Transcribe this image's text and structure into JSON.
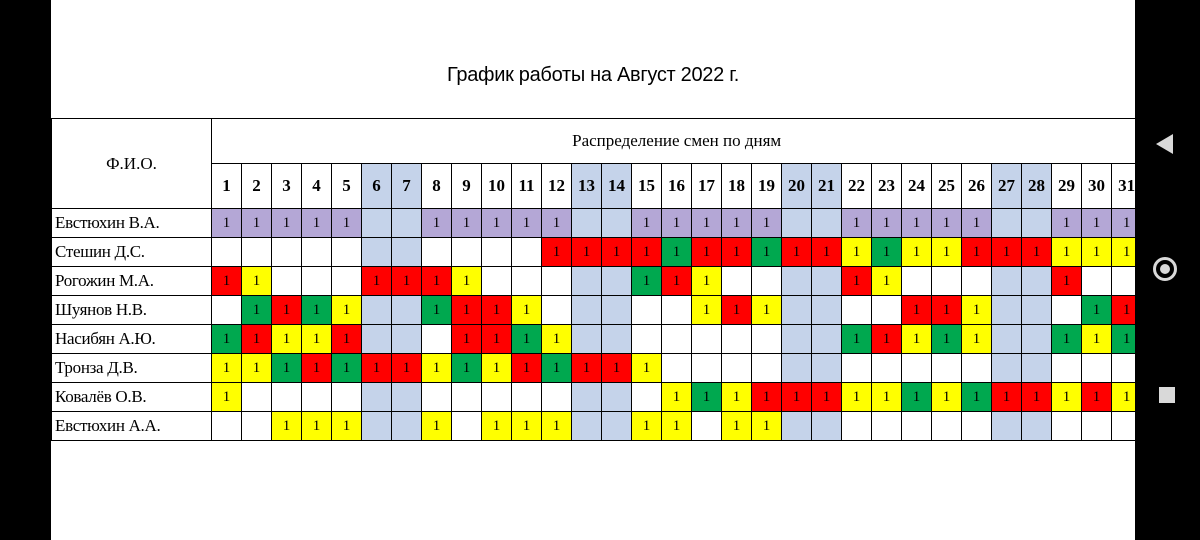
{
  "title": "График работы на Август 2022 г.",
  "header": {
    "fio": "Ф.И.О.",
    "distribution": "Распределение смен по дням"
  },
  "days": [
    "1",
    "2",
    "3",
    "4",
    "5",
    "6",
    "7",
    "8",
    "9",
    "10",
    "11",
    "12",
    "13",
    "14",
    "15",
    "16",
    "17",
    "18",
    "19",
    "20",
    "21",
    "22",
    "23",
    "24",
    "25",
    "26",
    "27",
    "28",
    "29",
    "30",
    "31"
  ],
  "weekend_days": [
    6,
    7,
    13,
    14,
    20,
    21,
    27,
    28
  ],
  "legend_colors": {
    "p": "#b4a7d6",
    "r": "#ff0000",
    "y": "#ffff00",
    "g": "#00a84f",
    "weekend": "#c5d3ea"
  },
  "rows": [
    {
      "name": "Евстюхин В.А.",
      "shifts": [
        "p1",
        "p1",
        "p1",
        "p1",
        "p1",
        "",
        "",
        "p1",
        "p1",
        "p1",
        "p1",
        "p1",
        "",
        "",
        "p1",
        "p1",
        "p1",
        "p1",
        "p1",
        "",
        "",
        "p1",
        "p1",
        "p1",
        "p1",
        "p1",
        "",
        "",
        "p1",
        "p1",
        "p1"
      ]
    },
    {
      "name": "Стешин Д.С.",
      "shifts": [
        "",
        "",
        "",
        "",
        "",
        "",
        "",
        "",
        "",
        "",
        "",
        "r1",
        "r1",
        "r1",
        "r1",
        "g1",
        "r1",
        "r1",
        "g1",
        "r1",
        "r1",
        "y1",
        "g1",
        "y1",
        "y1",
        "r1",
        "r1",
        "r1",
        "y1",
        "y1",
        "y1"
      ]
    },
    {
      "name": "Рогожин  М.А.",
      "shifts": [
        "r1",
        "y1",
        "",
        "",
        "",
        "r1",
        "r1",
        "r1",
        "y1",
        "",
        "",
        "",
        "",
        "",
        "g1",
        "r1",
        "y1",
        "",
        "",
        "",
        "",
        "r1",
        "y1",
        "",
        "",
        "",
        "",
        "",
        "r1",
        "",
        ""
      ]
    },
    {
      "name": "Шуянов Н.В.",
      "shifts": [
        "",
        "g1",
        "r1",
        "g1",
        "y1",
        "",
        "",
        "g1",
        "r1",
        "r1",
        "y1",
        "",
        "",
        "",
        "",
        "",
        "y1",
        "r1",
        "y1",
        "",
        "",
        "",
        "",
        "r1",
        "r1",
        "y1",
        "",
        "",
        "",
        "g1",
        "r1"
      ]
    },
    {
      "name": "Насибян А.Ю.",
      "shifts": [
        "g1",
        "r1",
        "y1",
        "y1",
        "r1",
        "",
        "",
        "",
        "r1",
        "r1",
        "g1",
        "y1",
        "",
        "",
        "",
        "",
        "",
        "",
        "",
        "",
        "",
        "g1",
        "r1",
        "y1",
        "g1",
        "y1",
        "",
        "",
        "g1",
        "y1",
        "g1"
      ]
    },
    {
      "name": "Тронза Д.В.",
      "shifts": [
        "y1",
        "y1",
        "g1",
        "r1",
        "g1",
        "r1",
        "r1",
        "y1",
        "g1",
        "y1",
        "r1",
        "g1",
        "r1",
        "r1",
        "y1",
        "",
        "",
        "",
        "",
        "",
        "",
        "",
        "",
        "",
        "",
        "",
        "",
        "",
        "",
        "",
        ""
      ]
    },
    {
      "name": "Ковалёв О.В.",
      "shifts": [
        "y1",
        "",
        "",
        "",
        "",
        "",
        "",
        "",
        "",
        "",
        "",
        "",
        "",
        "",
        "",
        "y1",
        "g1",
        "y1",
        "r1",
        "r1",
        "r1",
        "y1",
        "y1",
        "g1",
        "y1",
        "g1",
        "r1",
        "r1",
        "y1",
        "r1",
        "y1"
      ]
    },
    {
      "name": "Евстюхин А.А.",
      "shifts": [
        "",
        "",
        "y1",
        "y1",
        "y1",
        "",
        "",
        "y1",
        "",
        "y1",
        "y1",
        "y1",
        "",
        "",
        "y1",
        "y1",
        "",
        "y1",
        "y1",
        "",
        "",
        "",
        "",
        "",
        "",
        "",
        "",
        "",
        "",
        "",
        ""
      ]
    }
  ]
}
